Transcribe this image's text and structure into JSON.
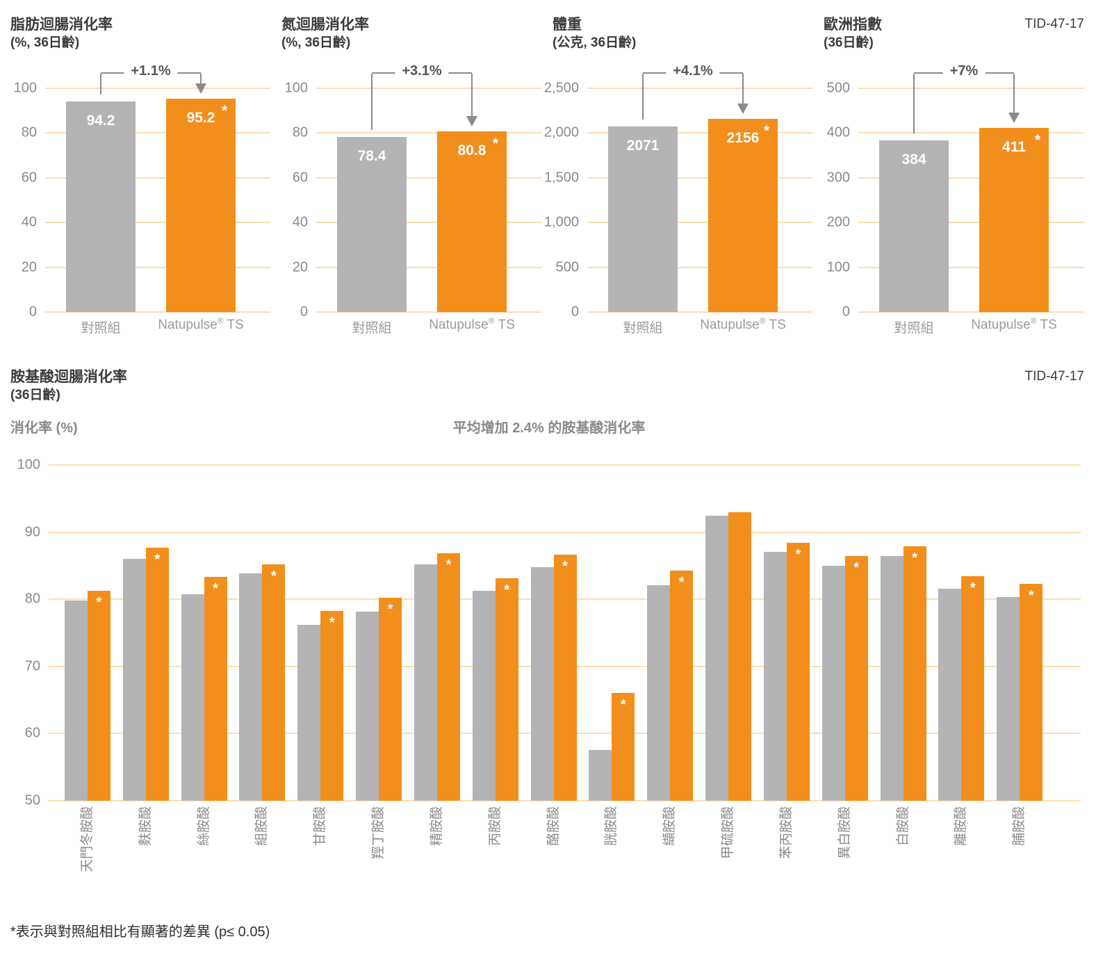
{
  "page": {
    "doc_id": "TID-47-17",
    "doc_id_bottom": "TID-47-17",
    "footnote": "*表示與對照組相比有顯著的差異 (p≤ 0.05)",
    "sig_marker": "*"
  },
  "legend": {
    "control": "對照組",
    "treatment": "Natupulse® TS",
    "brand": "Natupulse",
    "reg": "®",
    "brand_suffix": " TS"
  },
  "colors": {
    "control_bar": "#b4b4b6",
    "treatment_bar": "#f28e1c",
    "gridline": "#fcdeb2",
    "axis_text": "#8a8a8a",
    "title_text": "#3b3b3a",
    "annotation_line": "#8b8b8b",
    "category_text": "#9b9b9b"
  },
  "chart_data": [
    {
      "type": "bar",
      "title": "脂肪迴腸消化率",
      "subtitle": "(%, 36日齡)",
      "delta_label": "+1.1%",
      "categories": [
        "對照組",
        "Natupulse® TS"
      ],
      "values": [
        94.2,
        95.2
      ],
      "value_labels": [
        "94.2",
        "95.2"
      ],
      "treatment_significant": true,
      "ylim": [
        0,
        100
      ],
      "yticks": [
        0,
        20,
        40,
        60,
        80,
        100
      ],
      "ytick_labels": [
        "0",
        "20",
        "40",
        "60",
        "80",
        "100"
      ]
    },
    {
      "type": "bar",
      "title": "氮迴腸消化率",
      "subtitle": "(%, 36日齡)",
      "delta_label": "+3.1%",
      "categories": [
        "對照組",
        "Natupulse® TS"
      ],
      "values": [
        78.4,
        80.8
      ],
      "value_labels": [
        "78.4",
        "80.8"
      ],
      "treatment_significant": true,
      "ylim": [
        0,
        100
      ],
      "yticks": [
        0,
        20,
        40,
        60,
        80,
        100
      ],
      "ytick_labels": [
        "0",
        "20",
        "40",
        "60",
        "80",
        "100"
      ]
    },
    {
      "type": "bar",
      "title": "體重",
      "subtitle": "(公克, 36日齡)",
      "delta_label": "+4.1%",
      "categories": [
        "對照組",
        "Natupulse® TS"
      ],
      "values": [
        2071,
        2156
      ],
      "value_labels": [
        "2071",
        "2156"
      ],
      "treatment_significant": true,
      "ylim": [
        0,
        2500
      ],
      "yticks": [
        0,
        500,
        1000,
        1500,
        2000,
        2500
      ],
      "ytick_labels": [
        "0",
        "500",
        "1,000",
        "1,500",
        "2,000",
        "2,500"
      ]
    },
    {
      "type": "bar",
      "title": "歐洲指數",
      "subtitle": "(36日齡)",
      "delta_label": "+7%",
      "categories": [
        "對照組",
        "Natupulse® TS"
      ],
      "values": [
        384,
        411
      ],
      "value_labels": [
        "384",
        "411"
      ],
      "treatment_significant": true,
      "ylim": [
        0,
        500
      ],
      "yticks": [
        0,
        100,
        200,
        300,
        400,
        500
      ],
      "ytick_labels": [
        "0",
        "100",
        "200",
        "300",
        "400",
        "500"
      ]
    },
    {
      "type": "grouped-bar",
      "title": "胺基酸迴腸消化率",
      "subtitle": "(36日齡)",
      "ylabel": "消化率 (%)",
      "annotation": "平均增加 2.4% 的胺基酸消化率",
      "ylim": [
        50,
        100
      ],
      "yticks": [
        50,
        60,
        70,
        80,
        90,
        100
      ],
      "ytick_labels": [
        "50",
        "60",
        "70",
        "80",
        "90",
        "100"
      ],
      "categories": [
        "天門冬胺酸",
        "麩胺酸",
        "絲胺酸",
        "組胺酸",
        "甘胺酸",
        "羥丁胺酸",
        "精胺酸",
        "丙胺酸",
        "酪胺酸",
        "胱胺酸",
        "纈胺酸",
        "甲硫胺酸",
        "苯丙胺酸",
        "異白胺酸",
        "白胺酸",
        "離胺酸",
        "脯胺酸"
      ],
      "series": [
        {
          "name": "對照組",
          "values": [
            79.8,
            86.0,
            80.7,
            83.9,
            76.2,
            78.2,
            85.2,
            81.3,
            84.8,
            57.6,
            82.1,
            92.4,
            87.1,
            85.0,
            86.4,
            81.6,
            80.3
          ]
        },
        {
          "name": "Natupulse® TS",
          "values": [
            81.3,
            87.7,
            83.3,
            85.2,
            78.3,
            80.2,
            86.9,
            83.1,
            86.6,
            66.0,
            84.3,
            93.0,
            88.4,
            86.4,
            87.9,
            83.4,
            82.3
          ]
        }
      ],
      "significant": [
        true,
        true,
        true,
        true,
        true,
        true,
        true,
        true,
        true,
        true,
        true,
        false,
        true,
        true,
        true,
        true,
        true
      ]
    }
  ]
}
